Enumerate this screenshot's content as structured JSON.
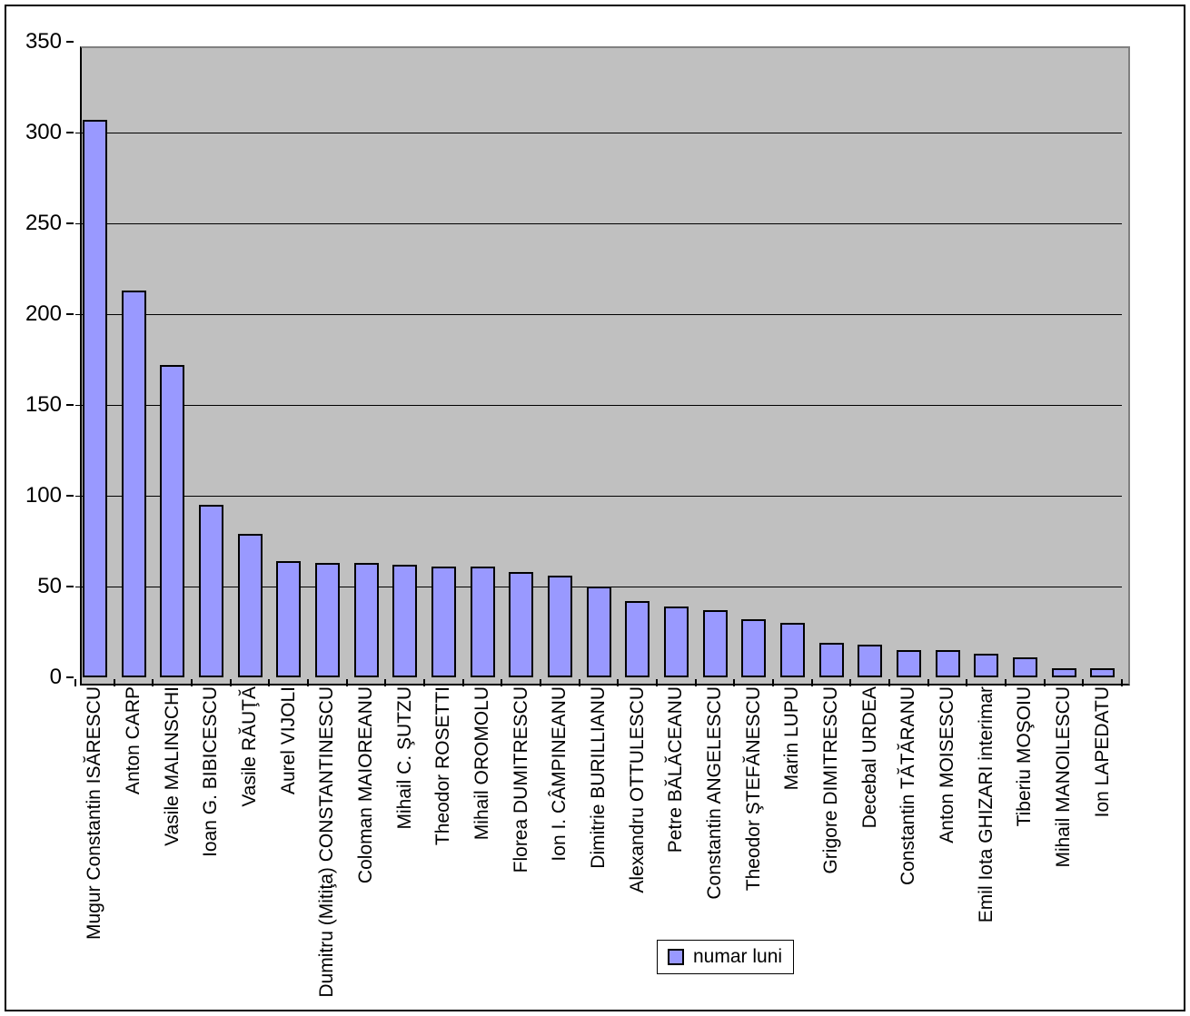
{
  "chart_data": {
    "type": "bar",
    "title": "",
    "series_name": "numar luni",
    "categories": [
      "Mugur Constantin ISĂRESCU",
      "Anton CARP",
      "Vasile MALINSCHI",
      "Ioan G. BIBICESCU",
      "Vasile RĂUŢĂ",
      "Aurel VIJOLI",
      "Dumitru (Mitiţa) CONSTANTINESCU",
      "Coloman MAIOREANU",
      "Mihail C. ŞUTZU",
      "Theodor ROSETTI",
      "Mihail OROMOLU",
      "Florea DUMITRESCU",
      "Ion I. CÂMPINEANU",
      "Dimitrie BURILLIANU",
      "Alexandru OTTULESCU",
      "Petre BĂLĂCEANU",
      "Constantin ANGELESCU",
      "Theodor ŞTEFĂNESCU",
      "Marin LUPU",
      "Grigore DIMITRESCU",
      "Decebal URDEA",
      "Constantin TĂTĂRANU",
      "Anton MOISESCU",
      "Emil Iota GHIZARI interimar",
      "Tiberiu MOŞOIU",
      "Mihail MANOILESCU",
      "Ion LAPEDATU"
    ],
    "values": [
      307,
      213,
      172,
      95,
      79,
      64,
      63,
      63,
      62,
      61,
      61,
      58,
      56,
      50,
      42,
      39,
      37,
      32,
      30,
      19,
      18,
      15,
      15,
      13,
      11,
      5,
      5
    ],
    "xlabel": "",
    "ylabel": "",
    "ylim": [
      0,
      350
    ],
    "ytick_step": 50,
    "yticks": [
      "0",
      "50",
      "100",
      "150",
      "200",
      "250",
      "300",
      "350"
    ],
    "grid": "horizontal-gridlines-on",
    "legend_position": "bottom-center",
    "colors": {
      "bar_fill": "#9999FF",
      "bar_border": "#000000",
      "plot_bg": "#C0C0C0",
      "plot_border": "#808080",
      "gridline": "#000000",
      "page_bg": "#FFFFFF"
    }
  }
}
